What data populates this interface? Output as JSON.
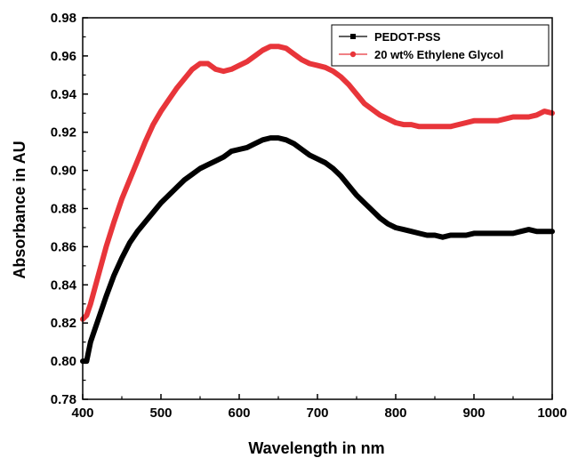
{
  "chart_data": {
    "type": "line",
    "title": "",
    "xlabel": "Wavelength in nm",
    "ylabel": "Absorbance in AU",
    "xlim": [
      400,
      1000
    ],
    "ylim": [
      0.78,
      0.98
    ],
    "xticks": [
      400,
      500,
      600,
      700,
      800,
      900,
      1000
    ],
    "yticks": [
      0.78,
      0.8,
      0.82,
      0.84,
      0.86,
      0.88,
      0.9,
      0.92,
      0.94,
      0.96,
      0.98
    ],
    "x_tick_labels": [
      "400",
      "500",
      "600",
      "700",
      "800",
      "900",
      "1000"
    ],
    "y_tick_labels": [
      "0.78",
      "0.80",
      "0.82",
      "0.84",
      "0.86",
      "0.88",
      "0.90",
      "0.92",
      "0.94",
      "0.96",
      "0.98"
    ],
    "grid": false,
    "legend_position": "top-right",
    "series": [
      {
        "name": "PEDOT-PSS",
        "color": "#000000",
        "marker": "square",
        "x": [
          400,
          405,
          410,
          420,
          430,
          440,
          450,
          460,
          470,
          480,
          490,
          500,
          510,
          520,
          530,
          540,
          550,
          560,
          570,
          580,
          590,
          600,
          610,
          620,
          630,
          640,
          650,
          660,
          670,
          680,
          690,
          700,
          710,
          720,
          730,
          740,
          750,
          760,
          770,
          780,
          790,
          800,
          810,
          820,
          830,
          840,
          850,
          860,
          870,
          880,
          890,
          900,
          910,
          920,
          930,
          940,
          950,
          960,
          970,
          980,
          990,
          1000
        ],
        "y": [
          0.8,
          0.8,
          0.81,
          0.822,
          0.834,
          0.845,
          0.854,
          0.862,
          0.868,
          0.873,
          0.878,
          0.883,
          0.887,
          0.891,
          0.895,
          0.898,
          0.901,
          0.903,
          0.905,
          0.907,
          0.91,
          0.911,
          0.912,
          0.914,
          0.916,
          0.917,
          0.917,
          0.916,
          0.914,
          0.911,
          0.908,
          0.906,
          0.904,
          0.901,
          0.897,
          0.892,
          0.887,
          0.883,
          0.879,
          0.875,
          0.872,
          0.87,
          0.869,
          0.868,
          0.867,
          0.866,
          0.866,
          0.865,
          0.866,
          0.866,
          0.866,
          0.867,
          0.867,
          0.867,
          0.867,
          0.867,
          0.867,
          0.868,
          0.869,
          0.868,
          0.868,
          0.868
        ]
      },
      {
        "name": "20 wt% Ethylene Glycol",
        "color": "#e8353a",
        "marker": "circle",
        "x": [
          400,
          405,
          410,
          420,
          430,
          440,
          450,
          460,
          470,
          480,
          490,
          500,
          510,
          520,
          530,
          540,
          550,
          560,
          570,
          580,
          590,
          600,
          610,
          620,
          630,
          640,
          650,
          660,
          670,
          680,
          690,
          700,
          710,
          720,
          730,
          740,
          750,
          760,
          770,
          780,
          790,
          800,
          810,
          820,
          830,
          840,
          850,
          860,
          870,
          880,
          890,
          900,
          910,
          920,
          930,
          940,
          950,
          960,
          970,
          980,
          990,
          1000
        ],
        "y": [
          0.822,
          0.824,
          0.83,
          0.845,
          0.86,
          0.873,
          0.885,
          0.895,
          0.905,
          0.915,
          0.924,
          0.931,
          0.937,
          0.943,
          0.948,
          0.953,
          0.956,
          0.956,
          0.953,
          0.952,
          0.953,
          0.955,
          0.957,
          0.96,
          0.963,
          0.965,
          0.965,
          0.964,
          0.961,
          0.958,
          0.956,
          0.955,
          0.954,
          0.952,
          0.949,
          0.945,
          0.94,
          0.935,
          0.932,
          0.929,
          0.927,
          0.925,
          0.924,
          0.924,
          0.923,
          0.923,
          0.923,
          0.923,
          0.923,
          0.924,
          0.925,
          0.926,
          0.926,
          0.926,
          0.926,
          0.927,
          0.928,
          0.928,
          0.928,
          0.929,
          0.931,
          0.93
        ]
      }
    ]
  }
}
